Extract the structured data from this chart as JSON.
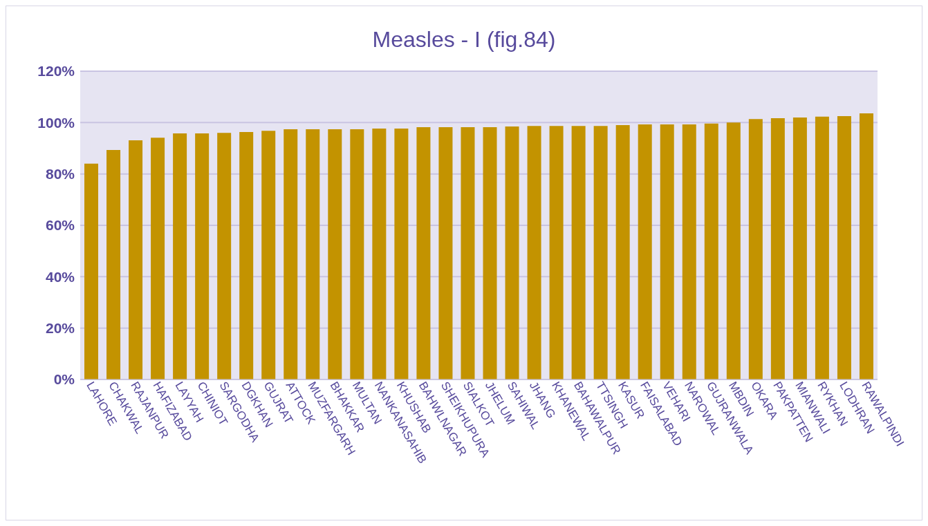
{
  "chart_data": {
    "type": "bar",
    "title": "Measles - I (fig.84)",
    "categories": [
      "LAHORE",
      "CHAKWAL",
      "RAJANPUR",
      "HAFIZABAD",
      "LAYYAH",
      "CHINIOT",
      "SARGODHA",
      "DGKHAN",
      "GUJRAT",
      "ATTOCK",
      "MUZFARGARH",
      "BHAKKAR",
      "MULTAN",
      "NANKANASAHIB",
      "KHUSHAB",
      "BAHWLNAGAR",
      "SHEIKHUPURA",
      "SIALKOT",
      "JHELUM",
      "SAHIWAL",
      "JHANG",
      "KHANEWAL",
      "BAHAWALPUR",
      "TTSINGH",
      "KASUR",
      "FAISALABAD",
      "VEHARI",
      "NAROWAL",
      "GUJRANWALA",
      "MBDIN",
      "OKARA",
      "PAKPATTEN",
      "MIANWALI",
      "RYKHAN",
      "LODHRAN",
      "RAWALPINDI"
    ],
    "values": [
      84,
      89.3,
      93.1,
      94.1,
      95.8,
      95.8,
      96,
      96.3,
      96.8,
      97.4,
      97.4,
      97.4,
      97.4,
      97.7,
      97.7,
      98.2,
      98.2,
      98.2,
      98.2,
      98.5,
      98.7,
      98.7,
      98.7,
      98.7,
      99,
      99.3,
      99.3,
      99.3,
      99.6,
      100,
      101.4,
      101.7,
      102,
      102.3,
      102.5,
      103.6
    ],
    "color": "#c39300",
    "ylim": [
      0,
      120
    ],
    "yticks": [
      {
        "value": 0,
        "label": "0%"
      },
      {
        "value": 20,
        "label": "20%"
      },
      {
        "value": 40,
        "label": "40%"
      },
      {
        "value": 60,
        "label": "60%"
      },
      {
        "value": 80,
        "label": "80%"
      },
      {
        "value": 100,
        "label": "100%"
      },
      {
        "value": 120,
        "label": "120%"
      }
    ],
    "grid": "y"
  }
}
